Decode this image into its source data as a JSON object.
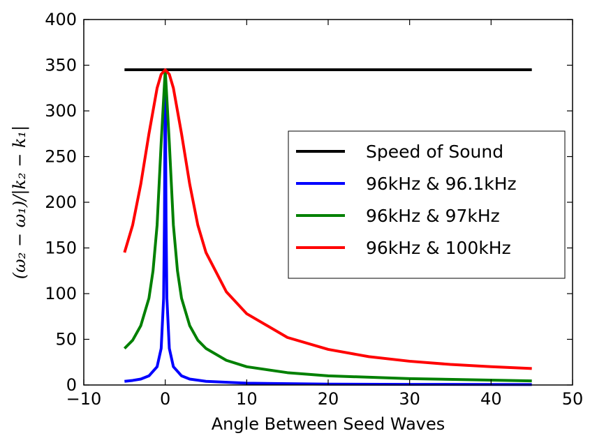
{
  "chart_data": {
    "type": "line",
    "title": "",
    "xlabel": "Angle Between Seed Waves",
    "ylabel": "(ω₂ − ω₁)/|k₂ − k₁|",
    "xlim": [
      -10,
      50
    ],
    "ylim": [
      0,
      400
    ],
    "xticks": [
      "−10",
      "0",
      "10",
      "20",
      "30",
      "40",
      "50"
    ],
    "yticks": [
      "0",
      "50",
      "100",
      "150",
      "200",
      "250",
      "300",
      "350",
      "400"
    ],
    "grid": false,
    "legend_position": "right",
    "series": [
      {
        "name": "Speed of Sound",
        "color": "#000000",
        "x": [
          -5,
          45
        ],
        "y": [
          345,
          345
        ]
      },
      {
        "name": "96kHz & 96.1kHz",
        "color": "#0000ff",
        "x": [
          -5,
          -4,
          -3,
          -2,
          -1,
          -0.5,
          -0.2,
          -0.1,
          0,
          0.1,
          0.2,
          0.5,
          1,
          2,
          3,
          5,
          10,
          20,
          30,
          45
        ],
        "y": [
          4,
          5,
          6.5,
          10,
          20,
          40,
          95,
          180,
          345,
          180,
          95,
          40,
          20,
          10,
          6.5,
          4,
          2,
          1,
          0.7,
          0.5
        ]
      },
      {
        "name": "96kHz & 97kHz",
        "color": "#008000",
        "x": [
          -5,
          -4,
          -3,
          -2,
          -1.5,
          -1,
          -0.5,
          0,
          0.5,
          1,
          1.5,
          2,
          3,
          4,
          5,
          7.5,
          10,
          15,
          20,
          30,
          45
        ],
        "y": [
          40,
          49,
          65,
          95,
          125,
          175,
          265,
          345,
          265,
          175,
          125,
          95,
          65,
          49,
          40,
          27,
          20,
          13.5,
          10,
          7,
          4.5
        ]
      },
      {
        "name": "96kHz & 100kHz",
        "color": "#ff0000",
        "x": [
          -5,
          -4,
          -3,
          -2,
          -1,
          -0.5,
          0,
          0.5,
          1,
          2,
          3,
          4,
          5,
          7.5,
          10,
          15,
          20,
          25,
          30,
          35,
          40,
          45
        ],
        "y": [
          145,
          175,
          220,
          275,
          325,
          340,
          345,
          340,
          325,
          275,
          220,
          175,
          145,
          102,
          78,
          52,
          39,
          31,
          26,
          22.5,
          20,
          18
        ]
      }
    ]
  }
}
